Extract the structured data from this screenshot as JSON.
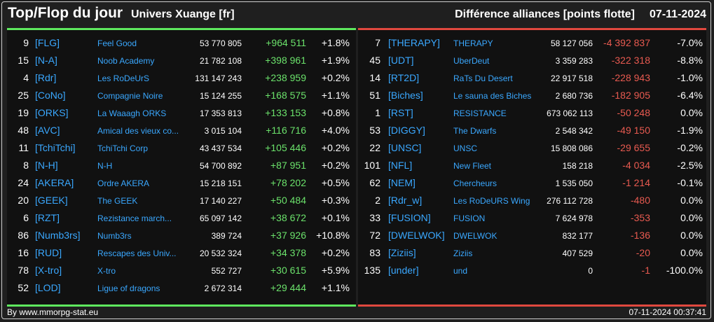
{
  "header": {
    "title": "Top/Flop du jour",
    "universe": "Univers Xuange [fr]",
    "subtitle": "Différence alliances [points flotte]",
    "date": "07-11-2024"
  },
  "colors": {
    "gain": "#6be26b",
    "loss": "#e85a50",
    "tag": "#3aa8ff",
    "top_border": "#5ee85e",
    "flop_border": "#e0483e"
  },
  "top": [
    {
      "rank": "9",
      "tag": "[FLG]",
      "name": "Feel Good",
      "points": "53 770 805",
      "delta": "+964 511",
      "pct": "+1.8%"
    },
    {
      "rank": "15",
      "tag": "[N-A]",
      "name": "Noob Academy",
      "points": "21 782 108",
      "delta": "+398 961",
      "pct": "+1.9%"
    },
    {
      "rank": "4",
      "tag": "[Rdr]",
      "name": "Les RoDeUrS",
      "points": "131 147 243",
      "delta": "+238 959",
      "pct": "+0.2%"
    },
    {
      "rank": "25",
      "tag": "[CoNo]",
      "name": "Compagnie Noire",
      "points": "15 124 255",
      "delta": "+168 575",
      "pct": "+1.1%"
    },
    {
      "rank": "19",
      "tag": "[ORKS]",
      "name": "La Waaagh ORKS",
      "points": "17 353 813",
      "delta": "+133 153",
      "pct": "+0.8%"
    },
    {
      "rank": "48",
      "tag": "[AVC]",
      "name": "Amical des vieux co...",
      "points": "3 015 104",
      "delta": "+116 716",
      "pct": "+4.0%"
    },
    {
      "rank": "11",
      "tag": "[TchiTchi]",
      "name": "TchiTchi Corp",
      "points": "43 437 534",
      "delta": "+105 446",
      "pct": "+0.2%"
    },
    {
      "rank": "8",
      "tag": "[N-H]",
      "name": "N-H",
      "points": "54 700 892",
      "delta": "+87 951",
      "pct": "+0.2%"
    },
    {
      "rank": "24",
      "tag": "[AKERA]",
      "name": "Ordre AKERA",
      "points": "15 218 151",
      "delta": "+78 202",
      "pct": "+0.5%"
    },
    {
      "rank": "20",
      "tag": "[GEEK]",
      "name": "The GEEK",
      "points": "17 140 227",
      "delta": "+50 484",
      "pct": "+0.3%"
    },
    {
      "rank": "6",
      "tag": "[RZT]",
      "name": "Rezistance march...",
      "points": "65 097 142",
      "delta": "+38 672",
      "pct": "+0.1%"
    },
    {
      "rank": "86",
      "tag": "[Numb3rs]",
      "name": "Numb3rs",
      "points": "389 724",
      "delta": "+37 926",
      "pct": "+10.8%"
    },
    {
      "rank": "16",
      "tag": "[RUD]",
      "name": "Rescapes des Univ...",
      "points": "20 532 324",
      "delta": "+34 378",
      "pct": "+0.2%"
    },
    {
      "rank": "78",
      "tag": "[X-tro]",
      "name": "X-tro",
      "points": "552 727",
      "delta": "+30 615",
      "pct": "+5.9%"
    },
    {
      "rank": "52",
      "tag": "[LOD]",
      "name": "Ligue of dragons",
      "points": "2 672 314",
      "delta": "+29 444",
      "pct": "+1.1%"
    }
  ],
  "flop": [
    {
      "rank": "7",
      "tag": "[THERAPY]",
      "name": "THERAPY",
      "points": "58 127 056",
      "delta": "-4 392 837",
      "pct": "-7.0%"
    },
    {
      "rank": "45",
      "tag": "[UDT]",
      "name": "UberDeut",
      "points": "3 359 283",
      "delta": "-322 318",
      "pct": "-8.8%"
    },
    {
      "rank": "14",
      "tag": "[RT2D]",
      "name": "RaTs Du Desert",
      "points": "22 917 518",
      "delta": "-228 943",
      "pct": "-1.0%"
    },
    {
      "rank": "51",
      "tag": "[Biches]",
      "name": "Le sauna des Biches",
      "points": "2 680 736",
      "delta": "-182 905",
      "pct": "-6.4%"
    },
    {
      "rank": "1",
      "tag": "[RST]",
      "name": "RESISTANCE",
      "points": "673 062 113",
      "delta": "-50 248",
      "pct": "0.0%"
    },
    {
      "rank": "53",
      "tag": "[DIGGY]",
      "name": "The Dwarfs",
      "points": "2 548 342",
      "delta": "-49 150",
      "pct": "-1.9%"
    },
    {
      "rank": "22",
      "tag": "[UNSC]",
      "name": "UNSC",
      "points": "15 808 086",
      "delta": "-29 655",
      "pct": "-0.2%"
    },
    {
      "rank": "101",
      "tag": "[NFL]",
      "name": "New Fleet",
      "points": "158 218",
      "delta": "-4 034",
      "pct": "-2.5%"
    },
    {
      "rank": "62",
      "tag": "[NEM]",
      "name": "Chercheurs",
      "points": "1 535 050",
      "delta": "-1 214",
      "pct": "-0.1%"
    },
    {
      "rank": "2",
      "tag": "[Rdr_w]",
      "name": "Les RoDeURS Wing",
      "points": "276 112 728",
      "delta": "-480",
      "pct": "0.0%"
    },
    {
      "rank": "33",
      "tag": "[FUSION]",
      "name": "FUSION",
      "points": "7 624 978",
      "delta": "-353",
      "pct": "0.0%"
    },
    {
      "rank": "72",
      "tag": "[DWELWOK]",
      "name": "DWELWOK",
      "points": "832 177",
      "delta": "-136",
      "pct": "0.0%"
    },
    {
      "rank": "83",
      "tag": "[Ziziis]",
      "name": "Ziziis",
      "points": "407 529",
      "delta": "-20",
      "pct": "0.0%"
    },
    {
      "rank": "135",
      "tag": "[under]",
      "name": "und",
      "points": "0",
      "delta": "-1",
      "pct": "-100.0%"
    }
  ],
  "footer": {
    "credit": "By www.mmorpg-stat.eu",
    "timestamp": "07-11-2024 00:37:41"
  }
}
